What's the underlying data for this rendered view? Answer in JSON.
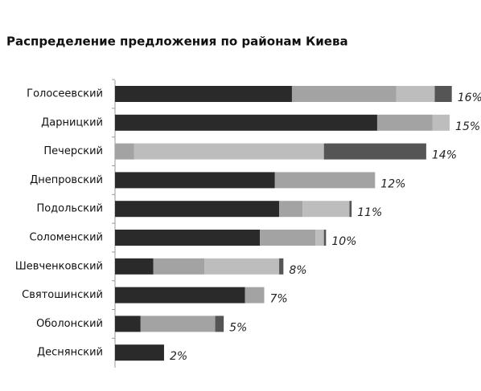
{
  "chart_data": {
    "type": "stacked-barh",
    "title": "Распределение предложения по районам Киева",
    "categories": [
      "Голосеевский",
      "Дарницкий",
      "Печерский",
      "Днепровский",
      "Подольский",
      "Соломенский",
      "Шевченковский",
      "Святошинский",
      "Оболонский",
      "Деснянский"
    ],
    "series": [
      {
        "color": "#2a2a2a",
        "values": [
          8.3,
          12.3,
          0,
          7.5,
          7.7,
          6.8,
          1.8,
          6.1,
          1.2,
          2.3
        ]
      },
      {
        "color": "#a3a3a3",
        "values": [
          4.9,
          2.6,
          0.9,
          4.7,
          1.1,
          2.6,
          2.4,
          0.9,
          3.5,
          0
        ]
      },
      {
        "color": "#bdbdbd",
        "values": [
          1.8,
          0.8,
          8.9,
          0,
          2.2,
          0.4,
          3.5,
          0,
          0,
          0
        ]
      },
      {
        "color": "#555555",
        "values": [
          0.8,
          0,
          4.8,
          0,
          0.1,
          0.1,
          0.2,
          0,
          0.4,
          0
        ]
      }
    ],
    "totals": [
      16,
      15,
      14,
      12,
      11,
      10,
      8,
      7,
      5,
      2
    ],
    "total_labels": [
      "16%",
      "15%",
      "14%",
      "12%",
      "11%",
      "10%",
      "8%",
      "7%",
      "5%",
      "2%"
    ]
  }
}
